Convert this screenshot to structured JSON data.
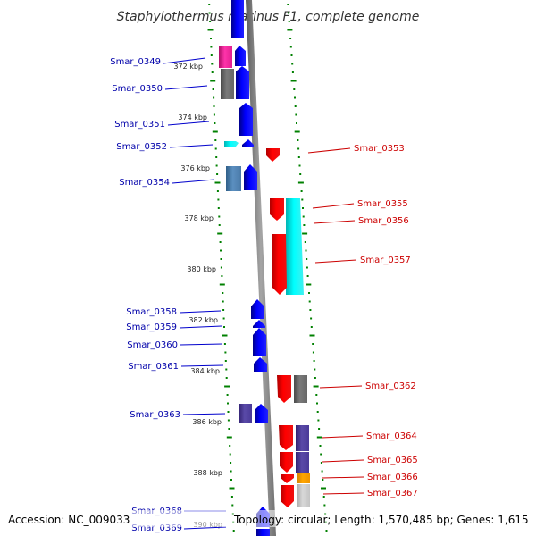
{
  "title": "Staphylothermus marinus F1, complete genome",
  "footer": {
    "accession": "Accession: NC_009033",
    "topology": "Topology: circular; Length: 1,570,485 bp; Genes: 1,615"
  },
  "colors": {
    "backbone": "#8c8c8c",
    "tick": "#008000",
    "left_label": "#0000aa",
    "right_label": "#cc0000",
    "leader_left": "#0000cc",
    "leader_right": "#cc0000"
  },
  "scale_labels": [
    "372 kbp",
    "374 kbp",
    "376 kbp",
    "378 kbp",
    "380 kbp",
    "382 kbp",
    "384 kbp",
    "386 kbp",
    "388 kbp",
    "390 kbp"
  ],
  "left_genes": [
    "Smar_0349",
    "Smar_0350",
    "Smar_0351",
    "Smar_0352",
    "Smar_0354",
    "Smar_0358",
    "Smar_0359",
    "Smar_0360",
    "Smar_0361",
    "Smar_0363",
    "Smar_0368",
    "Smar_0369"
  ],
  "right_genes": [
    "Smar_0353",
    "Smar_0355",
    "Smar_0356",
    "Smar_0357",
    "Smar_0362",
    "Smar_0364",
    "Smar_0365",
    "Smar_0366",
    "Smar_0367"
  ]
}
